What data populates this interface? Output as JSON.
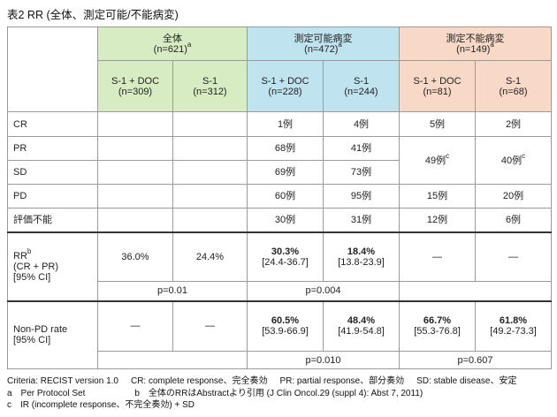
{
  "title": "表2 RR (全体、測定可能/不能病変)",
  "groups": {
    "all": {
      "name": "全体",
      "n": "(n=621)",
      "sup": "a"
    },
    "meas": {
      "name": "測定可能病変",
      "n": "(n=472)",
      "sup": "a"
    },
    "nonmeas": {
      "name": "測定不能病変",
      "n": "(n=149)",
      "sup": "a"
    }
  },
  "arms": [
    {
      "name": "S-1 + DOC",
      "n": "(n=309)"
    },
    {
      "name": "S-1",
      "n": "(n=312)"
    },
    {
      "name": "S-1 + DOC",
      "n": "(n=228)"
    },
    {
      "name": "S-1",
      "n": "(n=244)"
    },
    {
      "name": "S-1 + DOC",
      "n": "(n=81)"
    },
    {
      "name": "S-1",
      "n": "(n=68)"
    }
  ],
  "rows": {
    "cr": {
      "label": "CR",
      "v": [
        "",
        "",
        "1例",
        "4例",
        "5例",
        "2例"
      ]
    },
    "pr": {
      "label": "PR",
      "v": [
        "",
        "",
        "68例",
        "41例"
      ]
    },
    "sd": {
      "label": "SD",
      "v": [
        "",
        "",
        "69例",
        "73例"
      ]
    },
    "prsd_merged": {
      "v": [
        "49例",
        "40例"
      ],
      "sup": "c"
    },
    "pd": {
      "label": "PD",
      "v": [
        "",
        "",
        "60例",
        "95例",
        "15例",
        "20例"
      ]
    },
    "ne": {
      "label": "評価不能",
      "v": [
        "",
        "",
        "30例",
        "31例",
        "12例",
        "6例"
      ]
    }
  },
  "rr": {
    "label": "RR",
    "label_sup": "b",
    "label2": "(CR + PR)",
    "label3": "[95% CI]",
    "values": [
      "36.0%",
      "24.4%",
      "30.3%",
      "18.4%",
      "—",
      "—"
    ],
    "ci": [
      "",
      "",
      "[24.4-36.7]",
      "[13.8-23.9]",
      "",
      ""
    ],
    "p_all": "p=0.01",
    "p_meas": "p=0.004"
  },
  "nonpd": {
    "label": "Non-PD rate",
    "label2": "[95% CI]",
    "values": [
      "—",
      "—",
      "60.5%",
      "48.4%",
      "66.7%",
      "61.8%"
    ],
    "ci": [
      "",
      "",
      "[53.9-66.9]",
      "[41.9-54.8]",
      "[55.3-76.8]",
      "[49.2-73.3]"
    ],
    "p_meas": "p=0.010",
    "p_nonmeas": "p=0.607"
  },
  "notes": {
    "criteria": "Criteria: RECIST version 1.0",
    "cr": "CR: complete response、完全奏効",
    "pr": "PR: partial response、部分奏効",
    "sd": "SD: stable disease、安定",
    "a": "a　Per Protocol Set",
    "b": "b　全体のRRはAbstractより引用 (J Clin Oncol.29 (suppl 4): Abst 7, 2011)",
    "c": "c　IR (incomplete response、不完全奏効) + SD"
  },
  "colors": {
    "green": "#d7ecc2",
    "blue": "#bfe3ef",
    "orange": "#f8d8c6",
    "gray": "#d4d4d4"
  }
}
